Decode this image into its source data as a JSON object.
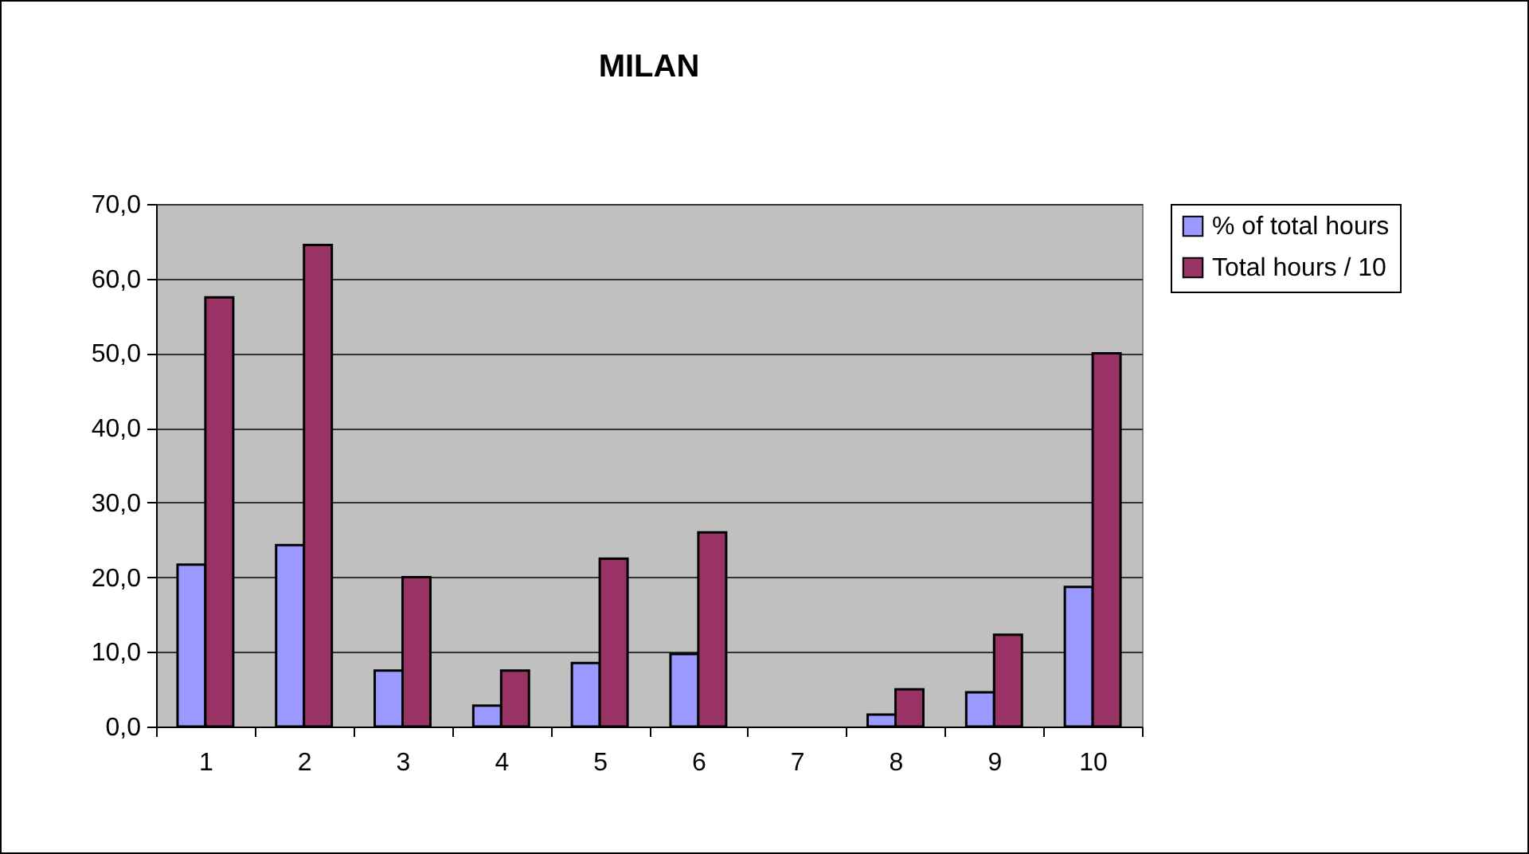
{
  "chart_data": {
    "type": "bar",
    "title": "MILAN",
    "categories": [
      "1",
      "2",
      "3",
      "4",
      "5",
      "6",
      "7",
      "8",
      "9",
      "10"
    ],
    "series": [
      {
        "name": "% of total hours",
        "color": "#9999ff",
        "values": [
          21.7,
          24.3,
          7.5,
          2.8,
          8.5,
          9.7,
          null,
          1.6,
          4.6,
          18.7
        ]
      },
      {
        "name": "Total hours / 10",
        "color": "#993366",
        "values": [
          57.5,
          64.5,
          20.0,
          7.5,
          22.5,
          26.0,
          null,
          5.0,
          12.3,
          50.0
        ]
      }
    ],
    "ylim": [
      0,
      70
    ],
    "yticks": [
      {
        "value": 0,
        "label": "0,0"
      },
      {
        "value": 10,
        "label": "10,0"
      },
      {
        "value": 20,
        "label": "20,0"
      },
      {
        "value": 30,
        "label": "30,0"
      },
      {
        "value": 40,
        "label": "40,0"
      },
      {
        "value": 50,
        "label": "50,0"
      },
      {
        "value": 60,
        "label": "60,0"
      },
      {
        "value": 70,
        "label": "70,0"
      }
    ],
    "grid": "y",
    "legend": "right"
  }
}
